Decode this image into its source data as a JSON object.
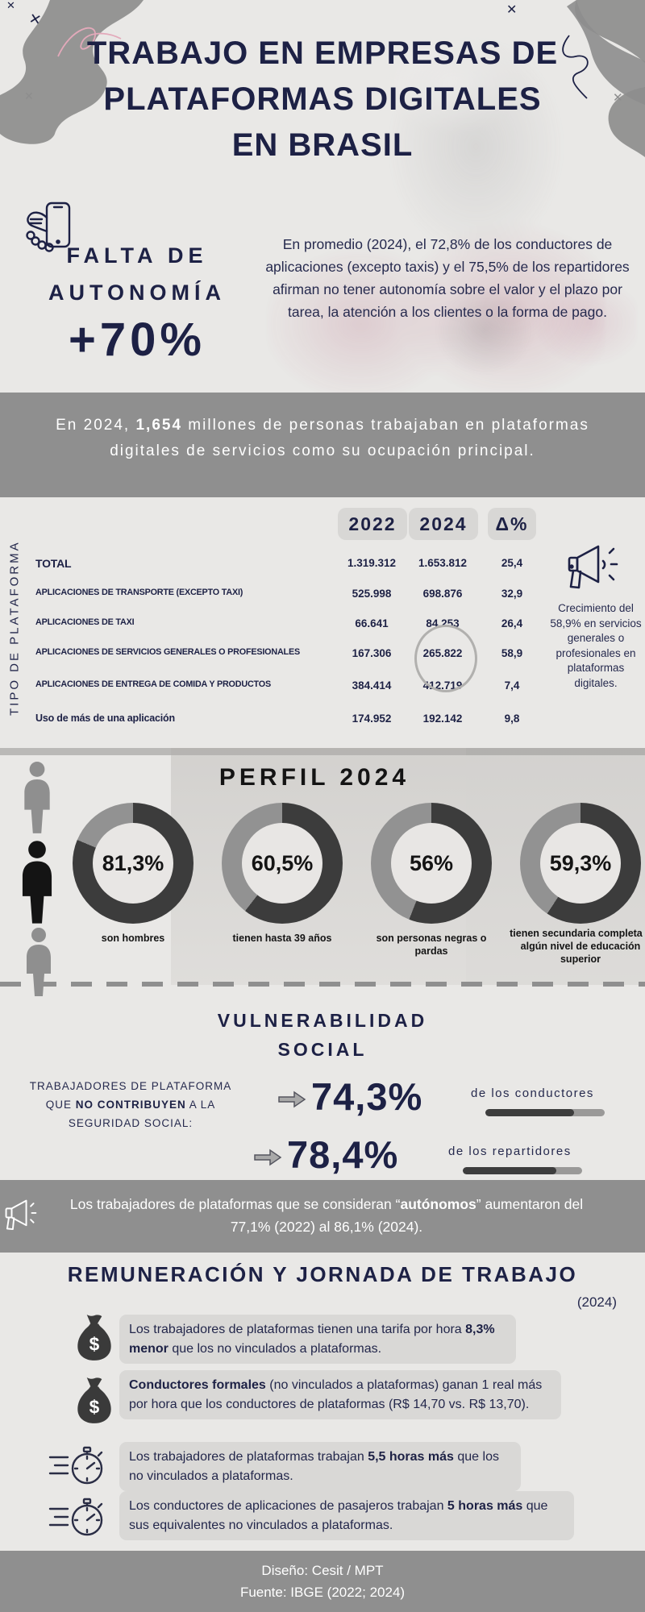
{
  "colors": {
    "navy": "#1d2145",
    "banner_gray": "#8f8f8f",
    "background": "#e9e8e6",
    "donut_dark": "#3c3c3c",
    "donut_light": "#929292",
    "pill_bg": "#d9d8d6"
  },
  "header": {
    "title_lines": [
      "TRABAJO EN EMPRESAS DE",
      "PLATAFORMAS DIGITALES",
      "EN BRASIL"
    ]
  },
  "autonomy": {
    "heading_line1": "FALTA DE",
    "heading_line2": "AUTONOMÍA",
    "big_number": "+70%",
    "paragraph": "En promedio (2024), el 72,8% de los conductores de aplicaciones (excepto taxis) y el 75,5% de los repartidores afirman no tener autonomía sobre el valor y el plazo por tarea, la atención a los clientes o la forma de pago."
  },
  "banner1": {
    "segments": [
      {
        "t": "En 2024, "
      },
      {
        "t": "1,654",
        "b": true
      },
      {
        "t": " millones de personas trabajaban en plataformas digitales de servicios como su ocupación principal."
      }
    ]
  },
  "table": {
    "side_label": "TIPO DE PLATAFORMA",
    "columns": [
      "2022",
      "2024",
      "Δ%"
    ],
    "rows": [
      {
        "label": "TOTAL",
        "v2022": "1.319.312",
        "v2024": "1.653.812",
        "delta": "25,4"
      },
      {
        "label": "APLICACIONES DE TRANSPORTE (EXCEPTO TAXI)",
        "v2022": "525.998",
        "v2024": "698.876",
        "delta": "32,9"
      },
      {
        "label": "APLICACIONES DE TAXI",
        "v2022": "66.641",
        "v2024": "84.253",
        "delta": "26,4"
      },
      {
        "label": "APLICACIONES DE SERVICIOS GENERALES O PROFESIONALES",
        "v2022": "167.306",
        "v2024": "265.822",
        "delta": "58,9"
      },
      {
        "label": "APLICACIONES DE ENTREGA DE COMIDA Y PRODUCTOS",
        "v2022": "384.414",
        "v2024": "412.719",
        "delta": "7,4"
      },
      {
        "label": "Uso de más de una aplicación",
        "v2022": "174.952",
        "v2024": "192.142",
        "delta": "9,8"
      }
    ],
    "note": "Crecimiento del 58,9% en servicios generales o profesionales en plataformas digitales."
  },
  "profile": {
    "title": "PERFIL 2024",
    "donuts": [
      {
        "percent": 81.3,
        "value_label": "81,3%",
        "caption": "son hombres"
      },
      {
        "percent": 60.5,
        "value_label": "60,5%",
        "caption": "tienen hasta 39 años"
      },
      {
        "percent": 56,
        "value_label": "56%",
        "caption": "son personas negras o pardas"
      },
      {
        "percent": 59.3,
        "value_label": "59,3%",
        "caption": "tienen secundaria completa o algún nivel de educación superior"
      }
    ]
  },
  "vulnerability": {
    "title_line1": "VULNERABILIDAD",
    "title_line2": "SOCIAL",
    "label_segments": [
      {
        "t": "TRABAJADORES DE PLATAFORMA QUE "
      },
      {
        "t": "NO CONTRIBUYEN",
        "b": true
      },
      {
        "t": " A LA SEGURIDAD SOCIAL:"
      }
    ],
    "rows": [
      {
        "value": "74,3%",
        "percent": 74.3,
        "suffix": "de los conductores"
      },
      {
        "value": "78,4%",
        "percent": 78.4,
        "suffix": "de los repartidores"
      }
    ]
  },
  "banner2": {
    "segments": [
      {
        "t": "Los trabajadores de plataformas que se consideran “"
      },
      {
        "t": "autónomos",
        "b": true
      },
      {
        "t": "” aumentaron del 77,1% (2022) al 86,1% (2024)."
      }
    ]
  },
  "remuneration": {
    "title": "REMUNERACIÓN Y JORNADA DE TRABAJO",
    "year": "(2024)",
    "items": [
      {
        "icon": "money-bag",
        "segments": [
          {
            "t": "Los trabajadores de plataformas tienen una tarifa por hora "
          },
          {
            "t": "8,3% menor",
            "b": true
          },
          {
            "t": " que los no vinculados a plataformas."
          }
        ]
      },
      {
        "icon": "money-bag",
        "segments": [
          {
            "t": "Conductores formales",
            "b": true
          },
          {
            "t": " (no vinculados a plataformas) ganan 1 real más por hora que los conductores de plataformas (R$ 14,70 vs. R$ 13,70)."
          }
        ]
      },
      {
        "icon": "stopwatch",
        "segments": [
          {
            "t": "Los trabajadores de plataformas trabajan "
          },
          {
            "t": "5,5 horas más",
            "b": true
          },
          {
            "t": " que los no vinculados a plataformas."
          }
        ]
      },
      {
        "icon": "stopwatch",
        "segments": [
          {
            "t": "Los conductores de aplicaciones de pasajeros trabajan "
          },
          {
            "t": "5 horas más",
            "b": true
          },
          {
            "t": " que sus equivalentes no vinculados a plataformas."
          }
        ]
      }
    ]
  },
  "footer": {
    "line1": "Diseño: Cesit / MPT",
    "line2": "Fuente: IBGE (2022; 2024)"
  },
  "chart_data": [
    {
      "type": "table",
      "name": "tipo_de_plataforma",
      "title": "Trabajadores por tipo de plataforma",
      "columns": [
        "TIPO DE PLATAFORMA",
        "2022",
        "2024",
        "Δ%"
      ],
      "rows": [
        [
          "TOTAL",
          1319312,
          1653812,
          25.4
        ],
        [
          "APLICACIONES DE TRANSPORTE (EXCEPTO TAXI)",
          525998,
          698876,
          32.9
        ],
        [
          "APLICACIONES DE TAXI",
          66641,
          84253,
          26.4
        ],
        [
          "APLICACIONES DE SERVICIOS GENERALES O PROFESIONALES",
          167306,
          265822,
          58.9
        ],
        [
          "APLICACIONES DE ENTREGA DE COMIDA Y PRODUCTOS",
          384414,
          412719,
          7.4
        ],
        [
          "Uso de más de una aplicación",
          174952,
          192142,
          9.8
        ]
      ],
      "highlighted_cell": {
        "row": "APLICACIONES DE SERVICIOS GENERALES O PROFESIONALES",
        "column": "2024",
        "value": 265822
      }
    },
    {
      "type": "pie",
      "variant": "donut",
      "name": "perfil_2024",
      "title": "PERFIL 2024",
      "items": [
        {
          "label": "son hombres",
          "value": 81.3
        },
        {
          "label": "tienen hasta 39 años",
          "value": 60.5
        },
        {
          "label": "son personas negras o pardas",
          "value": 56
        },
        {
          "label": "tienen secundaria completa o algún nivel de educación superior",
          "value": 59.3
        }
      ]
    },
    {
      "type": "bar",
      "name": "sin_seguridad_social",
      "title": "Trabajadores de plataforma que no contribuyen a la seguridad social",
      "categories": [
        "conductores",
        "repartidores"
      ],
      "values": [
        74.3,
        78.4
      ],
      "unit": "%"
    }
  ]
}
